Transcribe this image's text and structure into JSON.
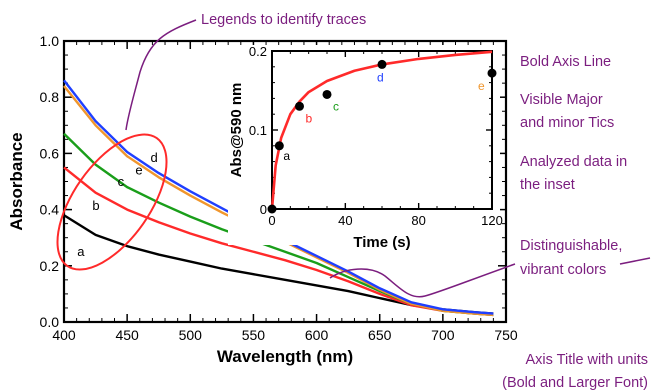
{
  "colors": {
    "a": "#000000",
    "b": "#ff2a2a",
    "c": "#1a9e1a",
    "d": "#1f3fff",
    "e": "#f0962d",
    "fit": "#ff2a2a",
    "annotation": "#7b1e7f"
  },
  "annotations": [
    "Legends to identify traces",
    "Bold Axis Line",
    "Visible Major",
    "and minor Tics",
    "Analyzed data in",
    "the inset",
    "Distinguishable,",
    "vibrant colors",
    "Axis Title with units",
    "(Bold and Larger Font)"
  ],
  "chart_data": [
    {
      "type": "line",
      "xlabel": "Wavelength (nm)",
      "ylabel": "Absorbance",
      "xlim": [
        400,
        750
      ],
      "ylim": [
        0.0,
        1.0
      ],
      "xticks": [
        "400",
        "450",
        "500",
        "550",
        "600",
        "650",
        "700",
        "750"
      ],
      "yticks": [
        "0.0",
        "0.2",
        "0.4",
        "0.6",
        "0.8",
        "1.0"
      ],
      "x": [
        400,
        425,
        450,
        475,
        500,
        525,
        550,
        575,
        600,
        625,
        650,
        675,
        700,
        725,
        740
      ],
      "series": [
        {
          "name": "a",
          "values": [
            0.38,
            0.31,
            0.27,
            0.24,
            0.215,
            0.19,
            0.17,
            0.15,
            0.13,
            0.11,
            0.085,
            0.06,
            0.045,
            0.035,
            0.03
          ]
        },
        {
          "name": "b",
          "values": [
            0.55,
            0.46,
            0.4,
            0.355,
            0.315,
            0.28,
            0.25,
            0.22,
            0.185,
            0.145,
            0.1,
            0.06,
            0.04,
            0.03,
            0.025
          ]
        },
        {
          "name": "c",
          "values": [
            0.67,
            0.56,
            0.48,
            0.425,
            0.375,
            0.33,
            0.29,
            0.25,
            0.21,
            0.16,
            0.11,
            0.065,
            0.04,
            0.03,
            0.025
          ]
        },
        {
          "name": "e",
          "values": [
            0.84,
            0.7,
            0.59,
            0.515,
            0.45,
            0.39,
            0.335,
            0.285,
            0.23,
            0.175,
            0.115,
            0.065,
            0.04,
            0.03,
            0.025
          ]
        },
        {
          "name": "d",
          "values": [
            0.86,
            0.715,
            0.605,
            0.53,
            0.465,
            0.405,
            0.345,
            0.29,
            0.235,
            0.18,
            0.12,
            0.07,
            0.045,
            0.035,
            0.03
          ]
        }
      ],
      "trace_labels": [
        "a",
        "b",
        "c",
        "e",
        "d"
      ]
    },
    {
      "type": "scatter",
      "xlabel": "Time (s)",
      "ylabel": "Abs@590 nm",
      "xlim": [
        0,
        120
      ],
      "ylim": [
        0.0,
        0.2
      ],
      "xticks": [
        "0",
        "40",
        "80",
        "120"
      ],
      "yticks": [
        "0",
        "0.1",
        "0.2"
      ],
      "points": [
        {
          "label": "",
          "x": 0,
          "y": 0.0
        },
        {
          "label": "a",
          "x": 4,
          "y": 0.08
        },
        {
          "label": "b",
          "x": 15,
          "y": 0.13
        },
        {
          "label": "c",
          "x": 30,
          "y": 0.145
        },
        {
          "label": "d",
          "x": 60,
          "y": 0.183
        },
        {
          "label": "e",
          "x": 120,
          "y": 0.172
        }
      ],
      "fit": {
        "x": [
          0,
          2,
          5,
          10,
          15,
          20,
          30,
          45,
          60,
          80,
          100,
          120
        ],
        "y": [
          0.0,
          0.055,
          0.09,
          0.12,
          0.136,
          0.148,
          0.162,
          0.175,
          0.183,
          0.19,
          0.195,
          0.199
        ]
      }
    }
  ]
}
